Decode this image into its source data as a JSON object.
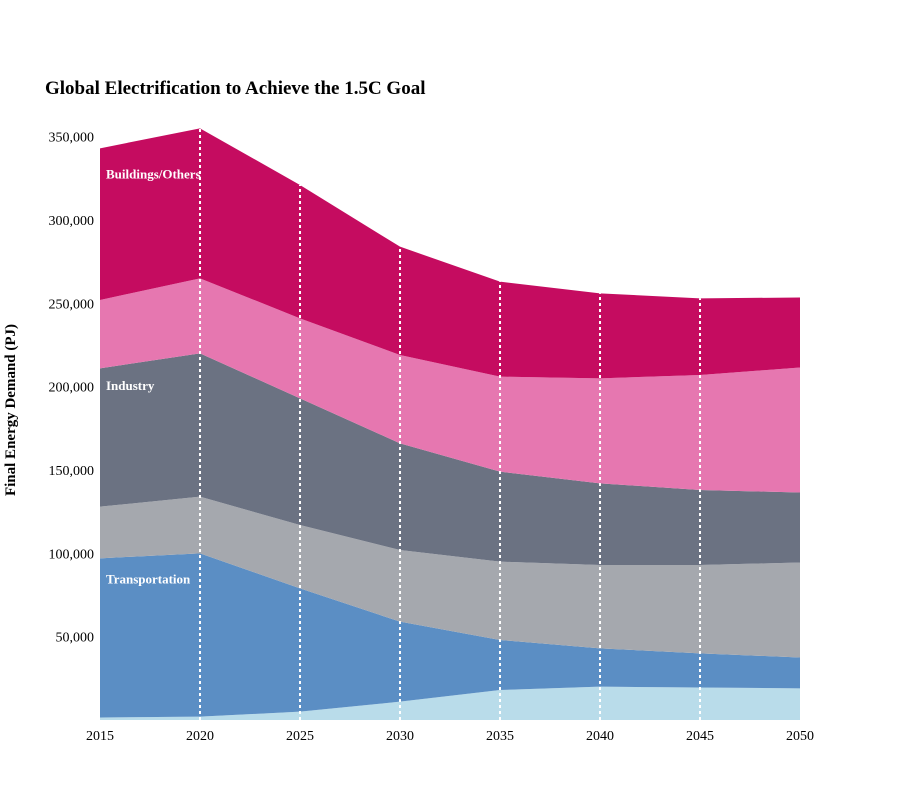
{
  "chart_data": {
    "type": "area",
    "stacked": true,
    "title": "Global Electrification to Achieve the 1.5C Goal",
    "xlabel": "",
    "ylabel": "Final Energy Demand (PJ)",
    "x": [
      2015,
      2020,
      2025,
      2030,
      2035,
      2040,
      2045,
      2050
    ],
    "x_tick_labels": [
      "2015",
      "2020",
      "2025",
      "2030",
      "2035",
      "2040",
      "2045",
      "2050"
    ],
    "ylim": [
      0,
      360000
    ],
    "y_ticks": [
      50000,
      100000,
      150000,
      200000,
      250000,
      300000,
      350000
    ],
    "y_tick_labels": [
      "50,000",
      "100,000",
      "150,000",
      "200,000",
      "250,000",
      "300,000",
      "350,000"
    ],
    "grid": "vertical dotted white lines at each x tick",
    "series": [
      {
        "group": "Transportation",
        "color": "#b9dcea",
        "values": [
          1500,
          2000,
          5000,
          11000,
          18000,
          20000,
          19500,
          19000
        ]
      },
      {
        "group": "Transportation",
        "color": "#5b8ec4",
        "values": [
          95500,
          98000,
          74000,
          48000,
          30000,
          23000,
          20500,
          18500
        ]
      },
      {
        "group": "Industry",
        "color": "#a5a8ae",
        "values": [
          31000,
          34000,
          38000,
          43000,
          47000,
          50000,
          53000,
          57000
        ]
      },
      {
        "group": "Industry",
        "color": "#6b7282",
        "values": [
          83000,
          86000,
          76000,
          64000,
          54000,
          49000,
          45000,
          42000
        ]
      },
      {
        "group": "Buildings/Others",
        "color": "#e677b0",
        "values": [
          41000,
          45000,
          48000,
          53000,
          57000,
          63000,
          69000,
          75000
        ]
      },
      {
        "group": "Buildings/Others",
        "color": "#c50c60",
        "values": [
          91000,
          90000,
          80000,
          65000,
          57000,
          51000,
          46000,
          42000
        ]
      }
    ],
    "area_labels": [
      "Transportation",
      "Industry",
      "Buildings/Others"
    ]
  }
}
